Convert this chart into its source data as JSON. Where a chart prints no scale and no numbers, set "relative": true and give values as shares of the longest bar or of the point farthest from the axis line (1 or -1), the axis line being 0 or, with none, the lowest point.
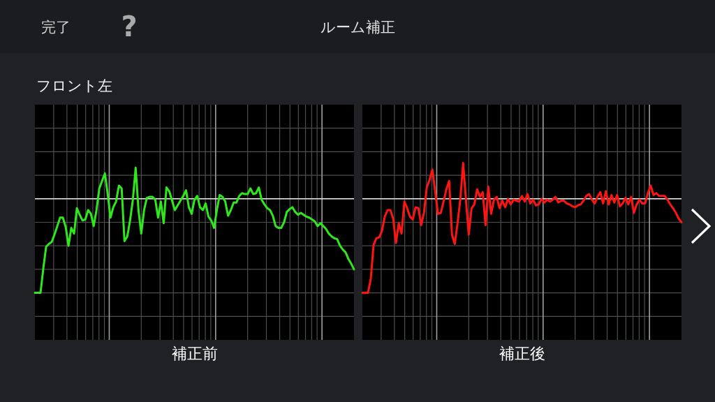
{
  "chart_data": [
    {
      "type": "line",
      "title": "ルーム補正",
      "subtitle": "フロント左",
      "annotations": [
        "完了",
        "?"
      ],
      "xlabel": "補正前",
      "relative": true,
      "grid": true,
      "ref_lines": [
        {
          "axis": "y",
          "value": 0,
          "color": "#e8e8e8"
        }
      ],
      "categories": [
        null,
        null,
        null,
        null,
        null,
        null,
        null,
        null,
        null,
        null,
        null,
        null,
        null,
        null,
        null,
        null,
        null,
        null,
        null,
        null,
        null,
        null,
        null,
        null,
        null,
        null,
        null,
        null,
        null,
        null,
        null,
        null,
        null,
        null,
        null,
        null,
        null,
        null,
        null,
        null,
        null,
        null,
        null,
        null,
        null,
        null,
        null,
        null,
        null,
        null,
        null,
        null,
        null,
        null,
        null,
        null,
        null,
        null,
        null,
        null,
        null,
        null,
        null,
        null,
        null,
        null,
        null,
        null,
        null,
        null,
        null,
        null,
        null,
        null,
        null,
        null,
        null,
        null,
        null,
        null,
        null,
        null,
        null,
        null,
        null,
        null,
        null,
        null,
        null,
        null,
        null,
        null,
        null,
        null,
        null,
        null,
        null,
        null,
        null,
        null,
        null,
        null,
        null,
        null,
        null,
        null,
        null,
        null,
        null,
        null,
        null,
        null,
        null,
        null,
        null
      ],
      "series": [
        {
          "color": "#2ee81c",
          "values": [
            -1,
            -1,
            -1,
            -0.74,
            -0.51,
            -0.48,
            -0.46,
            -0.38,
            -0.29,
            -0.2,
            -0.2,
            -0.3,
            -0.5,
            -0.31,
            -0.37,
            -0.1,
            -0.17,
            -0.23,
            -0.22,
            -0.12,
            -0.16,
            -0.29,
            -0.12,
            0.11,
            0.19,
            0.27,
            0.05,
            -0.2,
            -0.09,
            -0.03,
            0.14,
            0.11,
            -0.45,
            -0.4,
            -0.23,
            -0.01,
            0.33,
            -0.12,
            -0.37,
            -0.12,
            0.01,
            0.02,
            0.02,
            -0.01,
            -0.2,
            -0.03,
            -0.26,
            0.12,
            0.08,
            -0.02,
            -0.12,
            -0.07,
            -0.02,
            0.03,
            0.09,
            -0.09,
            -0.16,
            -0.01,
            0.03,
            -0.09,
            -0.12,
            -0.05,
            -0.19,
            -0.23,
            -0.31,
            -0.12,
            0.04,
            0.02,
            -0.03,
            -0.18,
            -0.12,
            -0.04,
            -0.04,
            0.03,
            0.06,
            0.05,
            0.05,
            0.11,
            0.05,
            0.06,
            0.12,
            -0.01,
            -0.06,
            -0.1,
            -0.12,
            -0.18,
            -0.29,
            -0.31,
            -0.31,
            -0.25,
            -0.14,
            -0.11,
            -0.09,
            -0.14,
            -0.17,
            -0.15,
            -0.17,
            -0.19,
            -0.2,
            -0.22,
            -0.24,
            -0.29,
            -0.26,
            -0.29,
            -0.32,
            -0.37,
            -0.4,
            -0.42,
            -0.43,
            -0.5,
            -0.54,
            -0.57,
            -0.64,
            -0.69,
            -0.75
          ]
        }
      ]
    },
    {
      "type": "line",
      "xlabel": "補正後",
      "relative": true,
      "grid": true,
      "ref_lines": [
        {
          "axis": "y",
          "value": 0,
          "color": "#e8e8e8"
        }
      ],
      "categories": [
        null,
        null,
        null,
        null,
        null,
        null,
        null,
        null,
        null,
        null,
        null,
        null,
        null,
        null,
        null,
        null,
        null,
        null,
        null,
        null,
        null,
        null,
        null,
        null,
        null,
        null,
        null,
        null,
        null,
        null,
        null,
        null,
        null,
        null,
        null,
        null,
        null,
        null,
        null,
        null,
        null,
        null,
        null,
        null,
        null,
        null,
        null,
        null,
        null,
        null,
        null,
        null,
        null,
        null,
        null,
        null,
        null,
        null,
        null,
        null,
        null,
        null,
        null,
        null,
        null,
        null,
        null,
        null,
        null,
        null,
        null,
        null,
        null,
        null,
        null,
        null,
        null,
        null,
        null,
        null,
        null,
        null,
        null,
        null,
        null,
        null,
        null,
        null,
        null,
        null,
        null,
        null,
        null,
        null,
        null,
        null,
        null,
        null,
        null,
        null,
        null,
        null,
        null,
        null,
        null,
        null,
        null,
        null,
        null,
        null,
        null,
        null,
        null,
        null,
        null
      ],
      "series": [
        {
          "color": "#ff1414",
          "values": [
            -1,
            -1,
            -1,
            -0.85,
            -0.49,
            -0.42,
            -0.41,
            -0.34,
            -0.19,
            -0.12,
            -0.12,
            -0.21,
            -0.47,
            -0.26,
            -0.37,
            -0.03,
            -0.1,
            -0.19,
            -0.22,
            -0.09,
            -0.1,
            -0.28,
            -0.15,
            0.12,
            0.2,
            0.31,
            0.08,
            -0.16,
            -0.15,
            -0.03,
            0.1,
            0.19,
            -0.38,
            -0.48,
            -0.26,
            0,
            0.38,
            -0.01,
            -0.38,
            -0.1,
            -0.06,
            0.1,
            0.02,
            0.07,
            -0.28,
            0.13,
            -0.16,
            -0.01,
            0.02,
            -0.1,
            -0.02,
            -0.09,
            0,
            -0.06,
            -0.01,
            -0.02,
            -0.03,
            0.03,
            -0.03,
            0.05,
            -0.05,
            -0.01,
            -0.07,
            -0.06,
            0,
            -0.04,
            -0.01,
            -0.03,
            -0.01,
            0.02,
            -0.04,
            -0.02,
            -0.02,
            -0.05,
            -0.06,
            -0.08,
            -0.09,
            -0.07,
            -0.06,
            -0.02,
            0.03,
            0.05,
            -0.01,
            -0.05,
            0.02,
            0.07,
            -0.05,
            0.08,
            -0.06,
            0.04,
            -0.04,
            0.04,
            -0.08,
            -0.05,
            0.01,
            -0.06,
            0.02,
            -0.15,
            -0.06,
            -0.01,
            -0.05,
            -0.05,
            0.06,
            0.14,
            0.04,
            0.06,
            0.03,
            0.03,
            0.03,
            -0.01,
            -0.06,
            -0.1,
            -0.15,
            -0.21,
            -0.25
          ]
        }
      ]
    }
  ]
}
